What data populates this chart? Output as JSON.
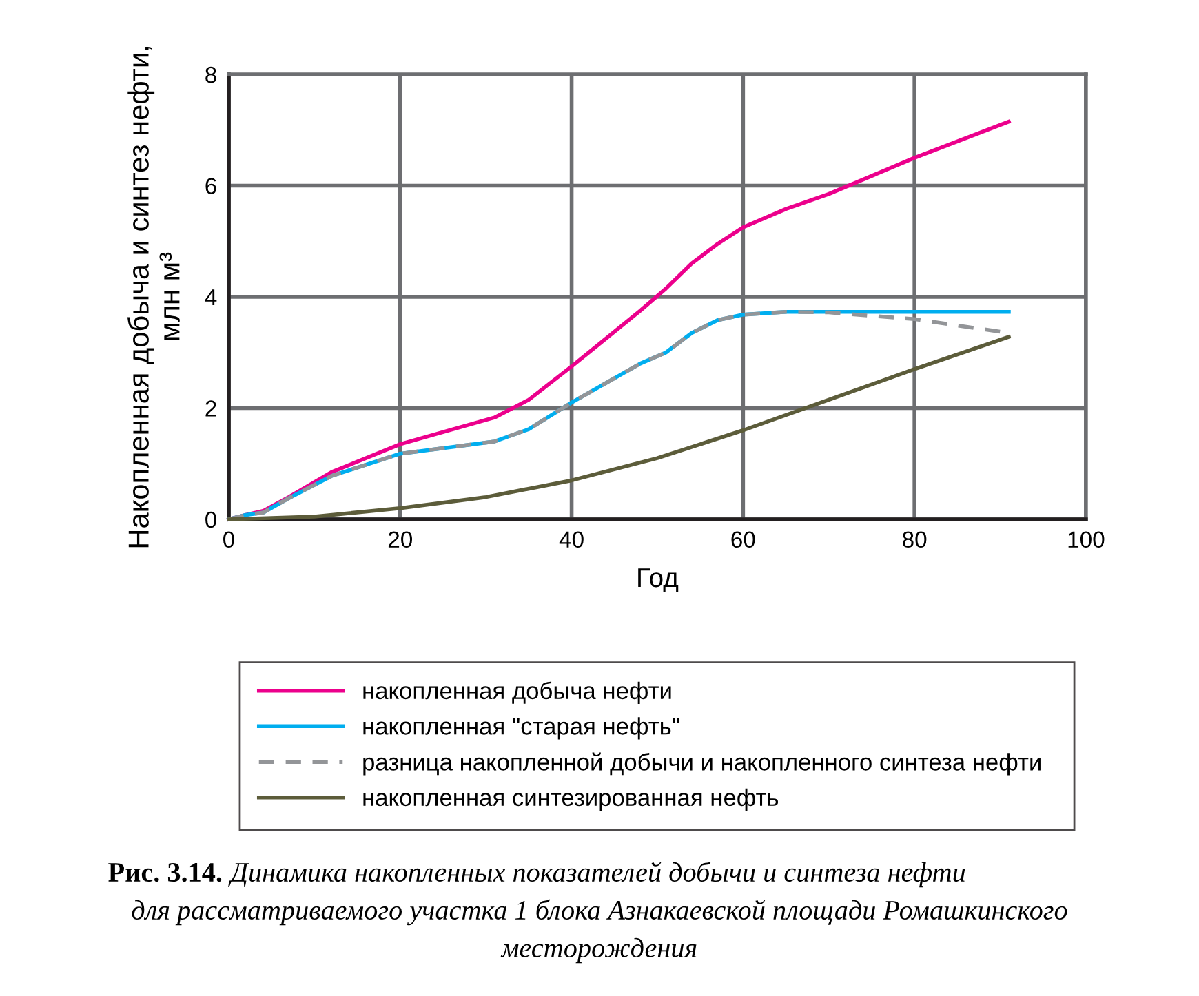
{
  "chart_data": {
    "type": "line",
    "xlabel": "Год",
    "ylabel": "Накопленная добыча и синтез нефти,\nмлн м³",
    "xlim": [
      0,
      100
    ],
    "xticks": [
      0,
      20,
      40,
      60,
      80,
      100
    ],
    "ylim": [
      0,
      8
    ],
    "yticks": [
      0,
      2,
      4,
      6,
      8
    ],
    "grid": true,
    "legend": "bottom",
    "marker": "none",
    "series": [
      {
        "name": "накопленная добыча нефти",
        "color": "#ec008c",
        "line_style": "solid",
        "x": [
          0,
          2,
          4,
          7,
          12,
          20,
          31,
          35,
          40,
          48,
          51,
          54,
          57,
          60,
          65,
          70,
          80,
          91
        ],
        "values": [
          0,
          0.08,
          0.15,
          0.4,
          0.85,
          1.35,
          1.83,
          2.15,
          2.75,
          3.75,
          4.15,
          4.6,
          4.95,
          5.25,
          5.58,
          5.85,
          6.5,
          7.15
        ]
      },
      {
        "name": "накопленная \"старая нефть\"",
        "color": "#00aeef",
        "line_style": "solid",
        "x": [
          0,
          2,
          4,
          7,
          12,
          20,
          31,
          35,
          40,
          48,
          51,
          54,
          57,
          60,
          65,
          70,
          80,
          91
        ],
        "values": [
          0,
          0.08,
          0.12,
          0.38,
          0.78,
          1.18,
          1.4,
          1.62,
          2.1,
          2.8,
          3.0,
          3.35,
          3.58,
          3.68,
          3.73,
          3.73,
          3.73,
          3.73
        ]
      },
      {
        "name": "разница накопленной добычи и накопленного синтеза нефти",
        "color": "#939598",
        "line_style": "dashed",
        "x": [
          0,
          2,
          4,
          7,
          12,
          20,
          31,
          35,
          40,
          48,
          51,
          54,
          57,
          60,
          65,
          70,
          80,
          91
        ],
        "values": [
          0,
          0.08,
          0.12,
          0.38,
          0.78,
          1.18,
          1.4,
          1.62,
          2.1,
          2.8,
          3.0,
          3.35,
          3.58,
          3.68,
          3.73,
          3.72,
          3.6,
          3.35
        ]
      },
      {
        "name": "накопленная синтезированная нефть",
        "color": "#5c5c3a",
        "line_style": "solid",
        "x": [
          0,
          10,
          20,
          30,
          40,
          50,
          60,
          70,
          80,
          91
        ],
        "values": [
          0,
          0.05,
          0.2,
          0.4,
          0.7,
          1.1,
          1.6,
          2.15,
          2.7,
          3.28
        ]
      }
    ],
    "annotations": [
      "Рис. 3.14.",
      "Динамика накопленных показателей добычи и синтеза нефти\nдля рассматриваемого участка 1 блока Азнакаевской площади Ромашкинского\nместорождения"
    ]
  }
}
